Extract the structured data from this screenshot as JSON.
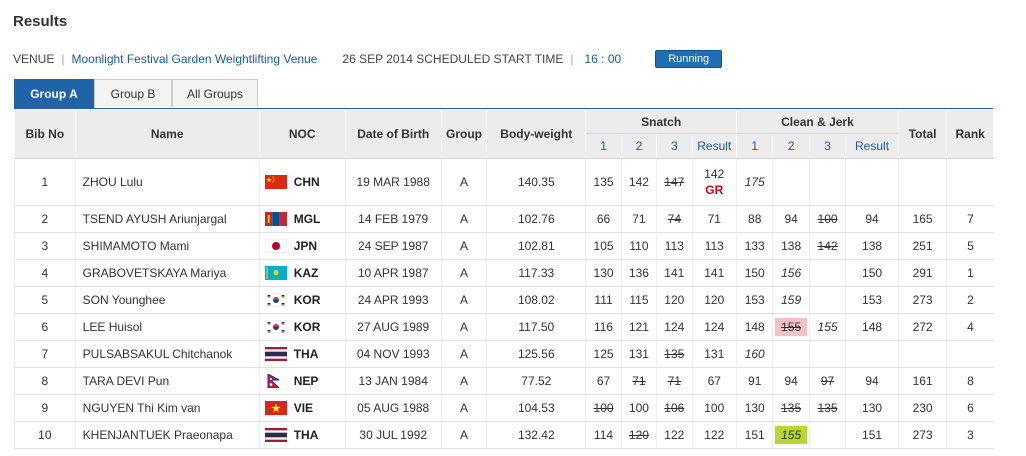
{
  "page": {
    "title": "Results"
  },
  "venue": {
    "label": "VENUE",
    "name": "Moonlight Festival Garden Weightlifting Venue",
    "schedule": "26 SEP 2014 SCHEDULED START TIME",
    "time": "16 : 00",
    "status": "Running"
  },
  "tabs": [
    {
      "label": "Group A",
      "active": true
    },
    {
      "label": "Group B",
      "active": false
    },
    {
      "label": "All Groups",
      "active": false
    }
  ],
  "headers": {
    "bib": "Bib No",
    "name": "Name",
    "noc": "NOC",
    "dob": "Date of Birth",
    "group": "Group",
    "bw": "Body-weight",
    "snatch": "Snatch",
    "cj": "Clean & Jerk",
    "total": "Total",
    "rank": "Rank",
    "attempts": [
      "1",
      "2",
      "3"
    ],
    "result": "Result"
  },
  "athletes": [
    {
      "bib": "1",
      "name": "ZHOU Lulu",
      "flag": "chn",
      "noc": "CHN",
      "dob": "19 MAR 1988",
      "group": "A",
      "bw": "140.35",
      "sn": [
        {
          "v": "135"
        },
        {
          "v": "142"
        },
        {
          "v": "147",
          "s": "fail"
        }
      ],
      "snr": "142",
      "snrec": "GR",
      "cj": [
        {
          "v": "175",
          "s": "next"
        },
        {
          "v": ""
        },
        {
          "v": ""
        }
      ],
      "cjr": "",
      "total": "",
      "rank": ""
    },
    {
      "bib": "2",
      "name": "TSEND AYUSH Ariunjargal",
      "flag": "mgl",
      "noc": "MGL",
      "dob": "14 FEB 1979",
      "group": "A",
      "bw": "102.76",
      "sn": [
        {
          "v": "66"
        },
        {
          "v": "71"
        },
        {
          "v": "74",
          "s": "fail"
        }
      ],
      "snr": "71",
      "cj": [
        {
          "v": "88"
        },
        {
          "v": "94"
        },
        {
          "v": "100",
          "s": "fail"
        }
      ],
      "cjr": "94",
      "total": "165",
      "rank": "7"
    },
    {
      "bib": "3",
      "name": "SHIMAMOTO Mami",
      "flag": "jpn",
      "noc": "JPN",
      "dob": "24 SEP 1987",
      "group": "A",
      "bw": "102.81",
      "sn": [
        {
          "v": "105"
        },
        {
          "v": "110"
        },
        {
          "v": "113"
        }
      ],
      "snr": "113",
      "cj": [
        {
          "v": "133"
        },
        {
          "v": "138"
        },
        {
          "v": "142",
          "s": "fail"
        }
      ],
      "cjr": "138",
      "total": "251",
      "rank": "5"
    },
    {
      "bib": "4",
      "name": "GRABOVETSKAYA Mariya",
      "flag": "kaz",
      "noc": "KAZ",
      "dob": "10 APR 1987",
      "group": "A",
      "bw": "117.33",
      "sn": [
        {
          "v": "130"
        },
        {
          "v": "136"
        },
        {
          "v": "141"
        }
      ],
      "snr": "141",
      "cj": [
        {
          "v": "150"
        },
        {
          "v": "156",
          "s": "next"
        },
        {
          "v": ""
        }
      ],
      "cjr": "150",
      "total": "291",
      "rank": "1"
    },
    {
      "bib": "5",
      "name": "SON Younghee",
      "flag": "kor",
      "noc": "KOR",
      "dob": "24 APR 1993",
      "group": "A",
      "bw": "108.02",
      "sn": [
        {
          "v": "111"
        },
        {
          "v": "115"
        },
        {
          "v": "120"
        }
      ],
      "snr": "120",
      "cj": [
        {
          "v": "153"
        },
        {
          "v": "159",
          "s": "next"
        },
        {
          "v": ""
        }
      ],
      "cjr": "153",
      "total": "273",
      "rank": "2"
    },
    {
      "bib": "6",
      "name": "LEE Huisol",
      "flag": "kor",
      "noc": "KOR",
      "dob": "27 AUG 1989",
      "group": "A",
      "bw": "117.50",
      "sn": [
        {
          "v": "116"
        },
        {
          "v": "121"
        },
        {
          "v": "124"
        }
      ],
      "snr": "124",
      "cj": [
        {
          "v": "148"
        },
        {
          "v": "155",
          "s": "fail-red"
        },
        {
          "v": "155",
          "s": "next"
        }
      ],
      "cjr": "148",
      "total": "272",
      "rank": "4"
    },
    {
      "bib": "7",
      "name": "PULSABSAKUL Chitchanok",
      "flag": "tha",
      "noc": "THA",
      "dob": "04 NOV 1993",
      "group": "A",
      "bw": "125.56",
      "sn": [
        {
          "v": "125"
        },
        {
          "v": "131"
        },
        {
          "v": "135",
          "s": "fail"
        }
      ],
      "snr": "131",
      "cj": [
        {
          "v": "160",
          "s": "next"
        },
        {
          "v": ""
        },
        {
          "v": ""
        }
      ],
      "cjr": "",
      "total": "",
      "rank": ""
    },
    {
      "bib": "8",
      "name": "TARA DEVI Pun",
      "flag": "nep",
      "noc": "NEP",
      "dob": "13 JAN 1984",
      "group": "A",
      "bw": "77.52",
      "sn": [
        {
          "v": "67"
        },
        {
          "v": "71",
          "s": "fail"
        },
        {
          "v": "71",
          "s": "fail"
        }
      ],
      "snr": "67",
      "cj": [
        {
          "v": "91"
        },
        {
          "v": "94"
        },
        {
          "v": "97",
          "s": "fail"
        }
      ],
      "cjr": "94",
      "total": "161",
      "rank": "8"
    },
    {
      "bib": "9",
      "name": "NGUYEN Thi Kim van",
      "flag": "vie",
      "noc": "VIE",
      "dob": "05 AUG 1988",
      "group": "A",
      "bw": "104.53",
      "sn": [
        {
          "v": "100",
          "s": "fail"
        },
        {
          "v": "100"
        },
        {
          "v": "106",
          "s": "fail"
        }
      ],
      "snr": "100",
      "cj": [
        {
          "v": "130"
        },
        {
          "v": "135",
          "s": "fail"
        },
        {
          "v": "135",
          "s": "fail"
        }
      ],
      "cjr": "130",
      "total": "230",
      "rank": "6"
    },
    {
      "bib": "10",
      "name": "KHENJANTUEK Praeonapa",
      "flag": "tha",
      "noc": "THA",
      "dob": "30 JUL 1992",
      "group": "A",
      "bw": "132.42",
      "sn": [
        {
          "v": "114"
        },
        {
          "v": "120",
          "s": "fail"
        },
        {
          "v": "122"
        }
      ],
      "snr": "122",
      "cj": [
        {
          "v": "151"
        },
        {
          "v": "155",
          "s": "next-green"
        },
        {
          "v": ""
        }
      ],
      "cjr": "151",
      "total": "273",
      "rank": "3"
    }
  ]
}
